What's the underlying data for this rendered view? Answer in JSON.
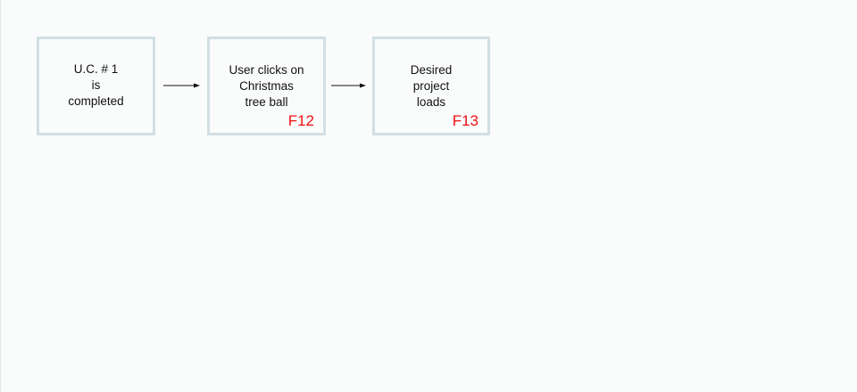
{
  "diagram": {
    "nodes": [
      {
        "id": "uc1-completed",
        "lines": [
          "U.C. # 1",
          "is",
          "completed"
        ],
        "code": ""
      },
      {
        "id": "user-clicks-ball",
        "lines": [
          "User clicks on",
          "Christmas",
          "tree ball"
        ],
        "code": "F12"
      },
      {
        "id": "project-loads",
        "lines": [
          "Desired",
          "project",
          "loads"
        ],
        "code": "F13"
      }
    ],
    "edges": [
      {
        "from": "uc1-completed",
        "to": "user-clicks-ball"
      },
      {
        "from": "user-clicks-ball",
        "to": "project-loads"
      }
    ],
    "colors": {
      "box_border": "#d2dfe4",
      "code_text": "#ee1111",
      "arrow": "#111111"
    }
  }
}
